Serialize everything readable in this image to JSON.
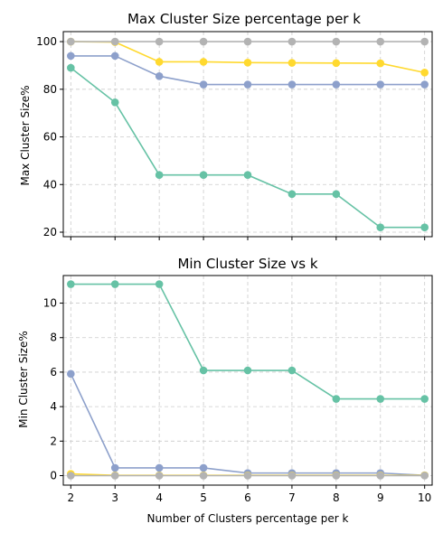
{
  "chart_data": [
    {
      "type": "line",
      "title": "Max Cluster Size percentage per k",
      "xlabel": "",
      "ylabel": "Max Cluster Size%",
      "x": [
        2,
        3,
        4,
        5,
        6,
        7,
        8,
        9,
        10
      ],
      "ylim": [
        18.1,
        104.2
      ],
      "yticks": [
        20,
        40,
        60,
        80,
        100
      ],
      "grid": true,
      "series": [
        {
          "color": "#66c2a5",
          "values": [
            89,
            74.5,
            44,
            44,
            44,
            36,
            36,
            22,
            22
          ]
        },
        {
          "color": "#8da0cb",
          "values": [
            94,
            94,
            85.5,
            82,
            82,
            82,
            82,
            82,
            82
          ]
        },
        {
          "color": "#ffd92f",
          "values": [
            100,
            99.8,
            91.5,
            91.5,
            91.2,
            91.1,
            91,
            90.9,
            87
          ]
        },
        {
          "color": "#b3b3b3",
          "values": [
            100,
            100,
            100,
            100,
            100,
            100,
            100,
            100,
            100
          ]
        }
      ]
    },
    {
      "type": "line",
      "title": "Min Cluster Size vs k",
      "xlabel": "Number of Clusters percentage per k",
      "ylabel": "Min Cluster Size%",
      "x": [
        2,
        3,
        4,
        5,
        6,
        7,
        8,
        9,
        10
      ],
      "xticks": [
        2,
        3,
        4,
        5,
        6,
        7,
        8,
        9,
        10
      ],
      "ylim": [
        -0.55,
        11.6
      ],
      "yticks": [
        0,
        2,
        4,
        6,
        8,
        10
      ],
      "grid": true,
      "series": [
        {
          "color": "#66c2a5",
          "values": [
            11.1,
            11.1,
            11.1,
            6.1,
            6.1,
            6.1,
            4.45,
            4.45,
            4.45
          ]
        },
        {
          "color": "#8da0cb",
          "values": [
            5.9,
            0.45,
            0.45,
            0.45,
            0.15,
            0.15,
            0.15,
            0.15,
            0.02
          ]
        },
        {
          "color": "#ffd92f",
          "values": [
            0.1,
            0.02,
            0.02,
            0.02,
            0.02,
            0.02,
            0.02,
            0.02,
            0.02
          ]
        },
        {
          "color": "#b3b3b3",
          "values": [
            0,
            0,
            0,
            0,
            0,
            0,
            0,
            0,
            0
          ]
        }
      ]
    }
  ]
}
